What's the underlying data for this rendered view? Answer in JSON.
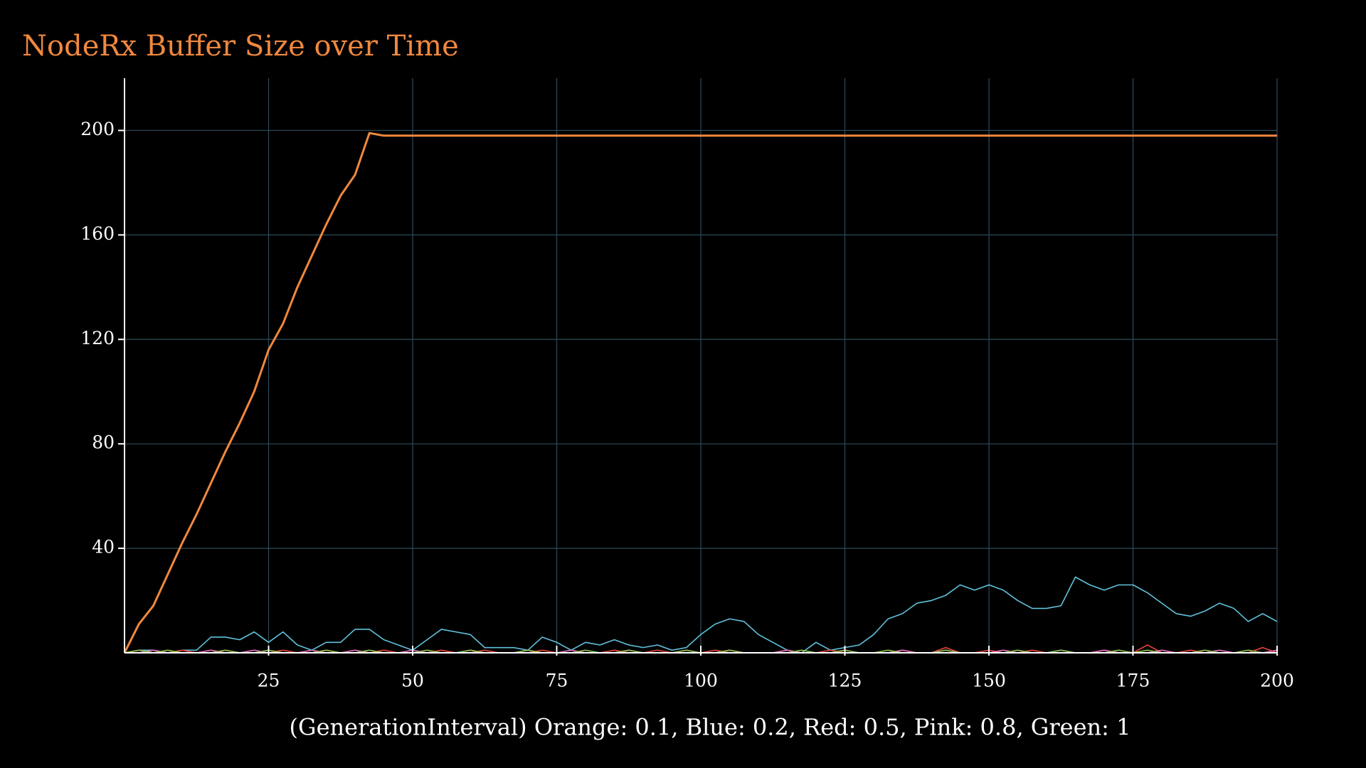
{
  "chart_data": {
    "type": "line",
    "title": "NodeRx Buffer Size over Time",
    "xlabel": "(GenerationInterval) Orange: 0.1, Blue: 0.2, Red: 0.5, Pink: 0.8, Green: 1",
    "title_color": "#f0883e",
    "x": [
      0,
      2.5,
      5,
      7.5,
      10,
      12.5,
      15,
      17.5,
      20,
      22.5,
      25,
      27.5,
      30,
      32.5,
      35,
      37.5,
      40,
      42.5,
      45,
      47.5,
      50,
      52.5,
      55,
      57.5,
      60,
      62.5,
      65,
      67.5,
      70,
      72.5,
      75,
      77.5,
      80,
      82.5,
      85,
      87.5,
      90,
      92.5,
      95,
      97.5,
      100,
      102.5,
      105,
      107.5,
      110,
      112.5,
      115,
      117.5,
      120,
      122.5,
      125,
      127.5,
      130,
      132.5,
      135,
      137.5,
      140,
      142.5,
      145,
      147.5,
      150,
      152.5,
      155,
      157.5,
      160,
      162.5,
      165,
      167.5,
      170,
      172.5,
      175,
      177.5,
      180,
      182.5,
      185,
      187.5,
      190,
      192.5,
      195,
      197.5,
      200
    ],
    "series": [
      {
        "color": "#f0883e",
        "values": [
          0,
          11,
          18,
          30,
          42,
          53,
          65,
          77,
          88,
          100,
          116,
          126,
          140,
          152,
          164,
          175,
          183,
          199,
          198,
          198,
          198,
          198,
          198,
          198,
          198,
          198,
          198,
          198,
          198,
          198,
          198,
          198,
          198,
          198,
          198,
          198,
          198,
          198,
          198,
          198,
          198,
          198,
          198,
          198,
          198,
          198,
          198,
          198,
          198,
          198,
          198,
          198,
          198,
          198,
          198,
          198,
          198,
          198,
          198,
          198,
          198,
          198,
          198,
          198,
          198,
          198,
          198,
          198,
          198,
          198,
          198,
          198,
          198,
          198,
          198,
          198,
          198,
          198,
          198,
          198,
          198
        ]
      },
      {
        "color": "#5fc2dc",
        "values": [
          0,
          1,
          1,
          0,
          1,
          1,
          6,
          6,
          5,
          8,
          4,
          8,
          3,
          1,
          4,
          4,
          9,
          9,
          5,
          3,
          1,
          5,
          9,
          8,
          7,
          2,
          2,
          2,
          1,
          6,
          4,
          1,
          4,
          3,
          5,
          3,
          2,
          3,
          1,
          2,
          7,
          11,
          13,
          12,
          7,
          4,
          1,
          0,
          4,
          1,
          2,
          3,
          7,
          13,
          15,
          19,
          20,
          22,
          26,
          24,
          26,
          24,
          20,
          17,
          17,
          18,
          29,
          26,
          24,
          26,
          26,
          23,
          19,
          15,
          14,
          16,
          19,
          17,
          12,
          15,
          12
        ]
      },
      {
        "color": "#e8453c",
        "values": [
          0,
          1,
          0,
          0,
          1,
          0,
          0,
          1,
          0,
          0,
          0,
          1,
          0,
          0,
          1,
          0,
          0,
          0,
          1,
          0,
          0,
          0,
          1,
          0,
          0,
          1,
          0,
          0,
          0,
          1,
          0,
          0,
          0,
          0,
          1,
          0,
          0,
          1,
          0,
          0,
          0,
          1,
          0,
          0,
          0,
          0,
          1,
          0,
          0,
          1,
          0,
          0,
          0,
          0,
          1,
          0,
          0,
          2,
          0,
          0,
          1,
          0,
          0,
          1,
          0,
          0,
          0,
          0,
          1,
          0,
          0,
          3,
          0,
          0,
          1,
          0,
          0,
          0,
          0,
          2,
          0
        ]
      },
      {
        "color": "#e86fc0",
        "values": [
          0,
          0,
          1,
          0,
          0,
          0,
          1,
          0,
          0,
          1,
          0,
          0,
          0,
          1,
          0,
          0,
          1,
          0,
          0,
          0,
          1,
          0,
          0,
          0,
          1,
          0,
          0,
          0,
          1,
          0,
          0,
          1,
          0,
          0,
          0,
          1,
          0,
          0,
          0,
          1,
          0,
          0,
          1,
          0,
          0,
          0,
          1,
          0,
          0,
          0,
          1,
          0,
          0,
          0,
          1,
          0,
          0,
          1,
          0,
          0,
          0,
          1,
          0,
          0,
          0,
          1,
          0,
          0,
          1,
          0,
          0,
          0,
          1,
          0,
          0,
          0,
          1,
          0,
          0,
          0,
          1
        ]
      },
      {
        "color": "#8bc34a",
        "values": [
          0,
          1,
          0,
          1,
          0,
          0,
          0,
          1,
          0,
          0,
          1,
          0,
          0,
          0,
          1,
          0,
          0,
          1,
          0,
          0,
          0,
          1,
          0,
          0,
          1,
          0,
          0,
          0,
          1,
          0,
          0,
          0,
          1,
          0,
          0,
          1,
          0,
          0,
          0,
          1,
          0,
          0,
          1,
          0,
          0,
          0,
          0,
          1,
          0,
          0,
          1,
          0,
          0,
          1,
          0,
          0,
          0,
          1,
          0,
          0,
          0,
          0,
          1,
          0,
          0,
          1,
          0,
          0,
          0,
          1,
          0,
          1,
          0,
          0,
          0,
          1,
          0,
          0,
          1,
          0,
          0
        ]
      }
    ],
    "xlim": [
      0,
      200
    ],
    "ylim": [
      0,
      220
    ],
    "xticks": [
      25,
      50,
      75,
      100,
      125,
      150,
      175,
      200
    ],
    "yticks": [
      40,
      80,
      120,
      160,
      200
    ],
    "grid": true
  }
}
